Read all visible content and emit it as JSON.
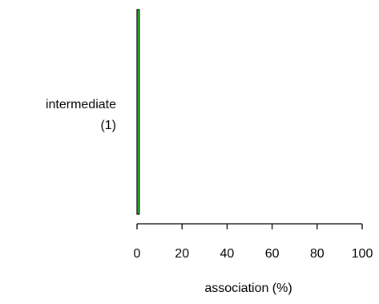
{
  "chart_data": {
    "type": "bar",
    "orientation": "horizontal",
    "categories": [
      "intermediate"
    ],
    "category_counts": [
      "(1)"
    ],
    "values": [
      1
    ],
    "xlabel": "association (%)",
    "xlim": [
      0,
      100
    ],
    "xticks": [
      0,
      20,
      40,
      60,
      80,
      100
    ],
    "bar_color": "#33dd33",
    "grid": false,
    "legend": "none"
  }
}
